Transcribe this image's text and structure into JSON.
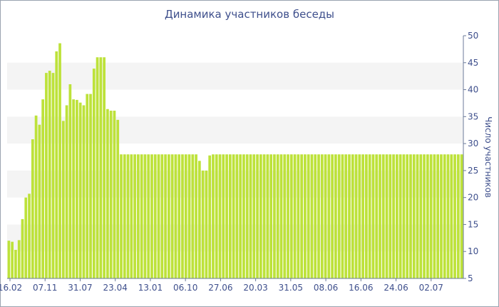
{
  "chart_data": {
    "type": "bar",
    "title": "Динамика участников беседы",
    "xlabel": "",
    "ylabel": "Число участников",
    "ylim": [
      5,
      50
    ],
    "yticks": [
      5,
      10,
      15,
      20,
      25,
      30,
      35,
      40,
      45,
      50
    ],
    "y_axis_position": "right",
    "grid": "alternating horizontal bands",
    "bar_color": "#bde23a",
    "x_tick_labels": [
      "16.02",
      "07.11",
      "31.07",
      "23.04",
      "13.01",
      "06.10",
      "27.06",
      "20.03",
      "31.05",
      "08.06",
      "16.06",
      "24.06",
      "02.07"
    ],
    "values": [
      12,
      11.8,
      10.3,
      12.1,
      16,
      20,
      20.7,
      30.8,
      35.2,
      33.5,
      38.2,
      43.1,
      43.5,
      43.1,
      47.1,
      48.6,
      34.2,
      37.1,
      41,
      38.2,
      38.1,
      37.6,
      37.1,
      39.2,
      39.2,
      43.9,
      46,
      46,
      46,
      36.4,
      36.1,
      36.1,
      34.4,
      28,
      28,
      28,
      28,
      28,
      28,
      28,
      28,
      28,
      28,
      28,
      28,
      28,
      28,
      28,
      28,
      28,
      28,
      28,
      28,
      28,
      28,
      28,
      26.8,
      25,
      25,
      27.8,
      28,
      28,
      28,
      28,
      28,
      28,
      28,
      28,
      28,
      28,
      28,
      28,
      28,
      28,
      28,
      28,
      28,
      28,
      28,
      28,
      28,
      28,
      28,
      28,
      28,
      28,
      28,
      28,
      28,
      28,
      28,
      28,
      28,
      28,
      28,
      28,
      28,
      28,
      28,
      28,
      28,
      28,
      28,
      28,
      28,
      28,
      28,
      28,
      28,
      28,
      28,
      28,
      28,
      28,
      28,
      28,
      28,
      28,
      28,
      28,
      28,
      28,
      28,
      28,
      28,
      28,
      28,
      28,
      28,
      28,
      28,
      28,
      28,
      28
    ]
  }
}
